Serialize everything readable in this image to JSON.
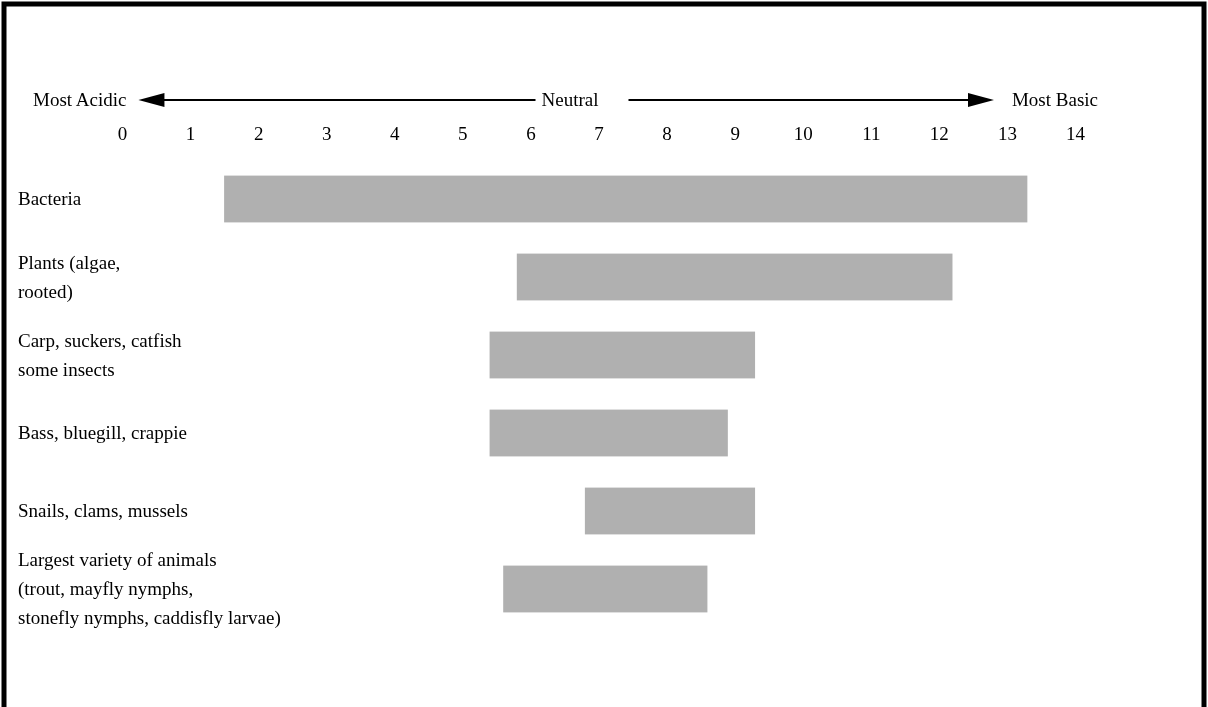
{
  "chart_data": {
    "type": "bar",
    "orientation": "horizontal",
    "categories": [
      "Bacteria",
      "Plants (algae,\nrooted)",
      "Carp, suckers, catfish\nsome insects",
      "Bass, bluegill, crappie",
      "Snails, clams, mussels",
      "Largest variety of animals\n(trout, mayfly  nymphs,\nstonefly  nymphs, caddisfly larvae)"
    ],
    "base": [
      1.5,
      5.8,
      5.4,
      5.4,
      6.8,
      5.6
    ],
    "values": [
      11.8,
      6.4,
      3.9,
      3.5,
      2.5,
      3.0
    ],
    "color": "#b0b0b0",
    "xlim": [
      0,
      14
    ],
    "xticks": [
      0,
      1,
      2,
      3,
      4,
      5,
      6,
      7,
      8,
      9,
      10,
      11,
      12,
      13,
      14
    ],
    "annotations": [
      "Most Acidic",
      "Neutral",
      "Most Basic"
    ],
    "grid": false
  }
}
